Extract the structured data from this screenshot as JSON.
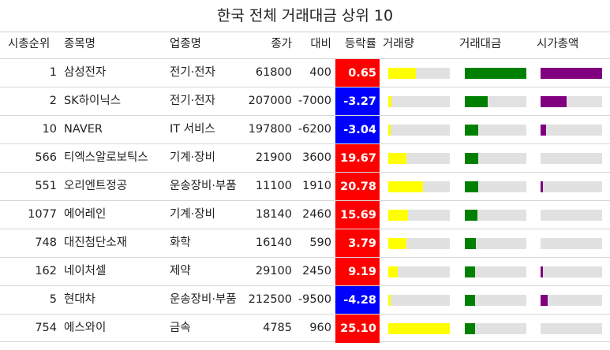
{
  "title": "한국 전체 거래대금 상위 10",
  "headers": {
    "rank": "시총순위",
    "name": "종목명",
    "sector": "업종명",
    "close": "종가",
    "diff": "대비",
    "rate": "등락률",
    "volume": "거래량",
    "value": "거래대금",
    "mcap": "시가총액"
  },
  "chart_data": {
    "type": "table",
    "title": "한국 전체 거래대금 상위 10",
    "columns": [
      "시총순위",
      "종목명",
      "업종명",
      "종가",
      "대비",
      "등락률",
      "거래량",
      "거래대금",
      "시가총액"
    ],
    "bar_columns": [
      "거래량",
      "거래대금",
      "시가총액"
    ],
    "bar_colors": {
      "거래량": "#ffff00",
      "거래대금": "#008000",
      "시가총액": "#800080"
    },
    "rate_colors": {
      "up": "#ff0000",
      "down": "#0000ff"
    },
    "track_color": "#e1e1e1",
    "rows": [
      {
        "rank": "1",
        "name": "삼성전자",
        "sector": "전기·전자",
        "close": "61800",
        "diff": "400",
        "rate": "0.65",
        "volume": 0.45,
        "value": 1.0,
        "mcap": 1.0
      },
      {
        "rank": "2",
        "name": "SK하이닉스",
        "sector": "전기·전자",
        "close": "207000",
        "diff": "-7000",
        "rate": "-3.27",
        "volume": 0.05,
        "value": 0.37,
        "mcap": 0.42
      },
      {
        "rank": "10",
        "name": "NAVER",
        "sector": "IT 서비스",
        "close": "197800",
        "diff": "-6200",
        "rate": "-3.04",
        "volume": 0.03,
        "value": 0.22,
        "mcap": 0.09
      },
      {
        "rank": "566",
        "name": "티엑스알로보틱스",
        "sector": "기계·장비",
        "close": "21900",
        "diff": "3600",
        "rate": "19.67",
        "volume": 0.3,
        "value": 0.22,
        "mcap": 0.0
      },
      {
        "rank": "551",
        "name": "오리엔트정공",
        "sector": "운송장비·부품",
        "close": "11100",
        "diff": "1910",
        "rate": "20.78",
        "volume": 0.56,
        "value": 0.22,
        "mcap": 0.02
      },
      {
        "rank": "1077",
        "name": "에어레인",
        "sector": "기계·장비",
        "close": "18140",
        "diff": "2460",
        "rate": "15.69",
        "volume": 0.32,
        "value": 0.2,
        "mcap": 0.0
      },
      {
        "rank": "748",
        "name": "대진첨단소재",
        "sector": "화학",
        "close": "16140",
        "diff": "590",
        "rate": "3.79",
        "volume": 0.3,
        "value": 0.18,
        "mcap": 0.0
      },
      {
        "rank": "162",
        "name": "네이처셀",
        "sector": "제약",
        "close": "29100",
        "diff": "2450",
        "rate": "9.19",
        "volume": 0.16,
        "value": 0.17,
        "mcap": 0.02
      },
      {
        "rank": "5",
        "name": "현대차",
        "sector": "운송장비·부품",
        "close": "212500",
        "diff": "-9500",
        "rate": "-4.28",
        "volume": 0.03,
        "value": 0.17,
        "mcap": 0.12
      },
      {
        "rank": "754",
        "name": "에스와이",
        "sector": "금속",
        "close": "4785",
        "diff": "960",
        "rate": "25.10",
        "volume": 1.0,
        "value": 0.17,
        "mcap": 0.0
      }
    ]
  }
}
